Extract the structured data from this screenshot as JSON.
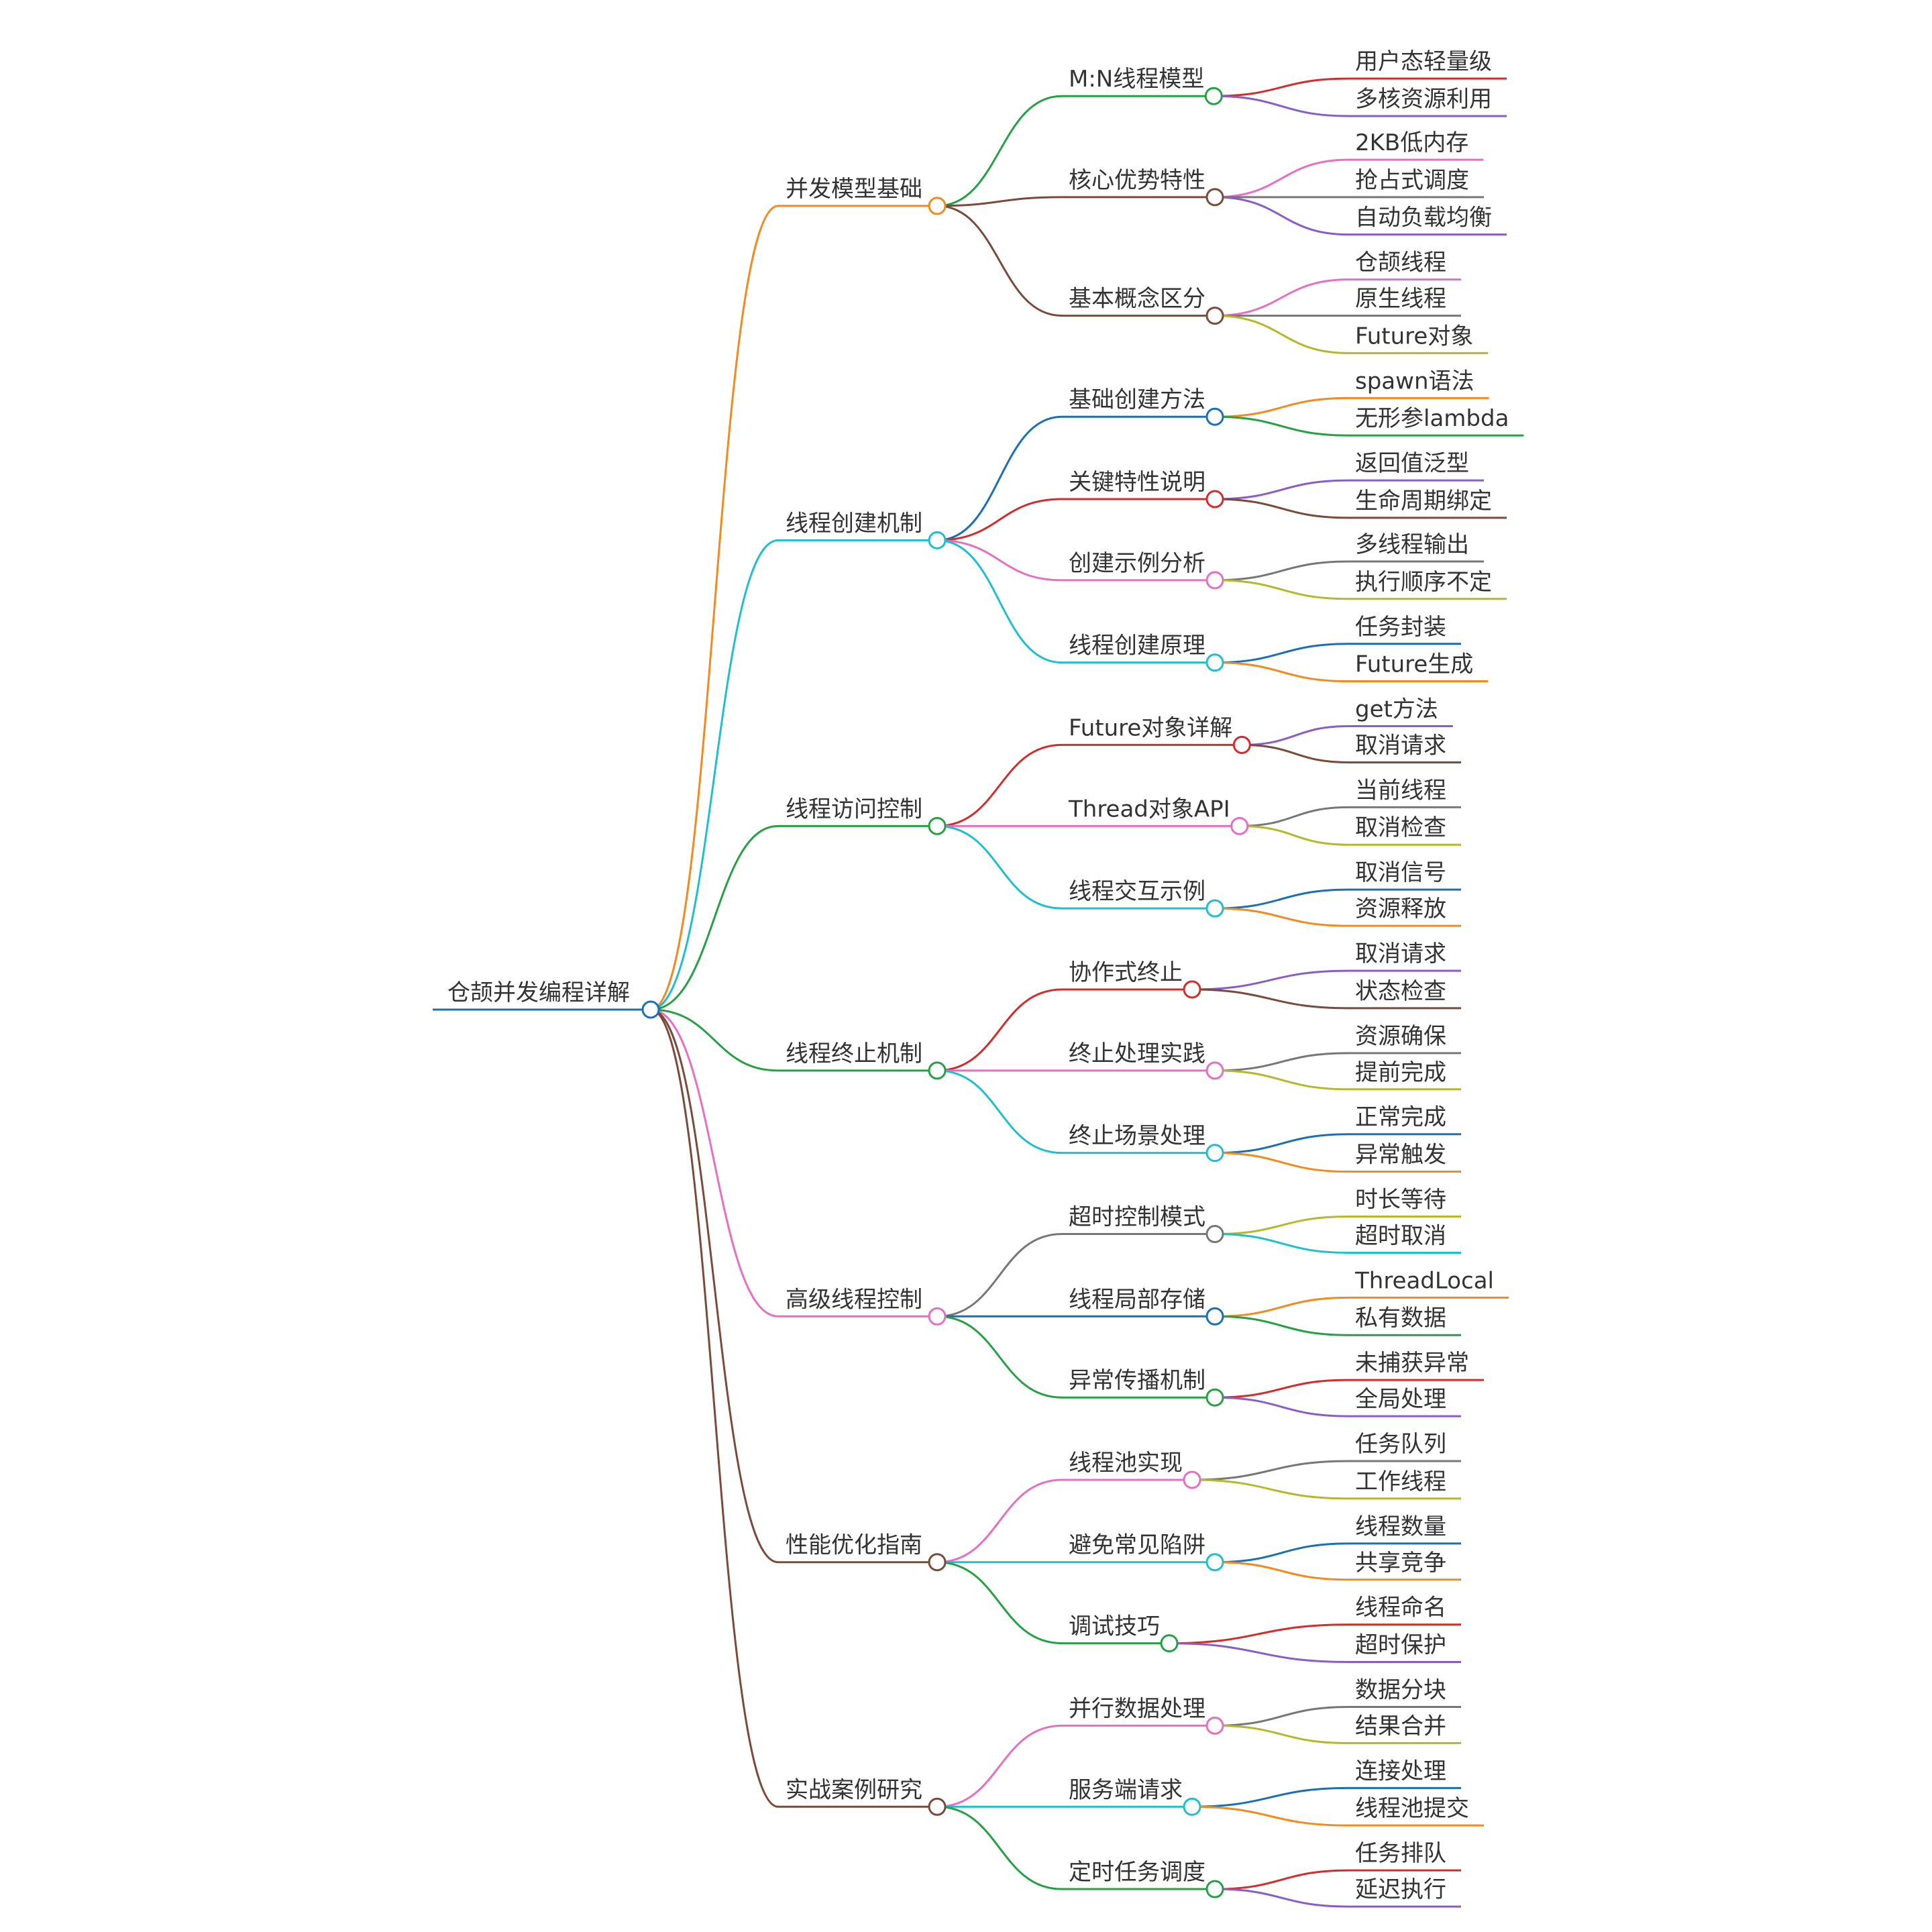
{
  "colors": {
    "orange": "#f28a1e",
    "cyan": "#1fbfcf",
    "green": "#26a045",
    "pink": "#e66fc4",
    "brown": "#7a4a3a",
    "blue": "#1a6fb5",
    "red": "#d22c2c",
    "purple": "#8a5cc7",
    "gray": "#777777",
    "olive": "#b4b82a",
    "text": "#333333"
  },
  "root": {
    "label": "仓颉并发编程详解",
    "color": "blue"
  },
  "branches": [
    {
      "label": "并发模型基础",
      "color": "orange",
      "children": [
        {
          "label": "M:N线程模型",
          "color": "green",
          "leaves": [
            {
              "label": "用户态轻量级",
              "color": "red"
            },
            {
              "label": "多核资源利用",
              "color": "purple"
            }
          ]
        },
        {
          "label": "核心优势特性",
          "color": "brown",
          "leaves": [
            {
              "label": "2KB低内存",
              "color": "pink"
            },
            {
              "label": "抢占式调度",
              "color": "gray"
            },
            {
              "label": "自动负载均衡",
              "color": "purple"
            }
          ]
        },
        {
          "label": "基本概念区分",
          "color": "brown",
          "leaves": [
            {
              "label": "仓颉线程",
              "color": "pink"
            },
            {
              "label": "原生线程",
              "color": "gray"
            },
            {
              "label": "Future对象",
              "color": "olive"
            }
          ]
        }
      ]
    },
    {
      "label": "线程创建机制",
      "color": "cyan",
      "children": [
        {
          "label": "基础创建方法",
          "color": "blue",
          "leaves": [
            {
              "label": "spawn语法",
              "color": "orange"
            },
            {
              "label": "无形参lambda",
              "color": "green"
            }
          ]
        },
        {
          "label": "关键特性说明",
          "color": "red",
          "leaves": [
            {
              "label": "返回值泛型",
              "color": "purple"
            },
            {
              "label": "生命周期绑定",
              "color": "brown"
            }
          ]
        },
        {
          "label": "创建示例分析",
          "color": "pink",
          "leaves": [
            {
              "label": "多线程输出",
              "color": "gray"
            },
            {
              "label": "执行顺序不定",
              "color": "olive"
            }
          ]
        },
        {
          "label": "线程创建原理",
          "color": "cyan",
          "leaves": [
            {
              "label": "任务封装",
              "color": "blue"
            },
            {
              "label": "Future生成",
              "color": "orange"
            }
          ]
        }
      ]
    },
    {
      "label": "线程访问控制",
      "color": "green",
      "children": [
        {
          "label": "Future对象详解",
          "color": "red",
          "leaves": [
            {
              "label": "get方法",
              "color": "purple"
            },
            {
              "label": "取消请求",
              "color": "brown"
            }
          ]
        },
        {
          "label": "Thread对象API",
          "color": "pink",
          "leaves": [
            {
              "label": "当前线程",
              "color": "gray"
            },
            {
              "label": "取消检查",
              "color": "olive"
            }
          ]
        },
        {
          "label": "线程交互示例",
          "color": "cyan",
          "leaves": [
            {
              "label": "取消信号",
              "color": "blue"
            },
            {
              "label": "资源释放",
              "color": "orange"
            }
          ]
        }
      ]
    },
    {
      "label": "线程终止机制",
      "color": "green",
      "children": [
        {
          "label": "协作式终止",
          "color": "red",
          "leaves": [
            {
              "label": "取消请求",
              "color": "purple"
            },
            {
              "label": "状态检查",
              "color": "brown"
            }
          ]
        },
        {
          "label": "终止处理实践",
          "color": "pink",
          "leaves": [
            {
              "label": "资源确保",
              "color": "gray"
            },
            {
              "label": "提前完成",
              "color": "olive"
            }
          ]
        },
        {
          "label": "终止场景处理",
          "color": "cyan",
          "leaves": [
            {
              "label": "正常完成",
              "color": "blue"
            },
            {
              "label": "异常触发",
              "color": "orange"
            }
          ]
        }
      ]
    },
    {
      "label": "高级线程控制",
      "color": "pink",
      "children": [
        {
          "label": "超时控制模式",
          "color": "gray",
          "leaves": [
            {
              "label": "时长等待",
              "color": "olive"
            },
            {
              "label": "超时取消",
              "color": "cyan"
            }
          ]
        },
        {
          "label": "线程局部存储",
          "color": "blue",
          "leaves": [
            {
              "label": "ThreadLocal",
              "color": "orange"
            },
            {
              "label": "私有数据",
              "color": "green"
            }
          ]
        },
        {
          "label": "异常传播机制",
          "color": "green",
          "leaves": [
            {
              "label": "未捕获异常",
              "color": "red"
            },
            {
              "label": "全局处理",
              "color": "purple"
            }
          ]
        }
      ]
    },
    {
      "label": "性能优化指南",
      "color": "brown",
      "children": [
        {
          "label": "线程池实现",
          "color": "pink",
          "leaves": [
            {
              "label": "任务队列",
              "color": "gray"
            },
            {
              "label": "工作线程",
              "color": "olive"
            }
          ]
        },
        {
          "label": "避免常见陷阱",
          "color": "cyan",
          "leaves": [
            {
              "label": "线程数量",
              "color": "blue"
            },
            {
              "label": "共享竞争",
              "color": "orange"
            }
          ]
        },
        {
          "label": "调试技巧",
          "color": "green",
          "leaves": [
            {
              "label": "线程命名",
              "color": "red"
            },
            {
              "label": "超时保护",
              "color": "purple"
            }
          ]
        }
      ]
    },
    {
      "label": "实战案例研究",
      "color": "brown",
      "children": [
        {
          "label": "并行数据处理",
          "color": "pink",
          "leaves": [
            {
              "label": "数据分块",
              "color": "gray"
            },
            {
              "label": "结果合并",
              "color": "olive"
            }
          ]
        },
        {
          "label": "服务端请求",
          "color": "cyan",
          "leaves": [
            {
              "label": "连接处理",
              "color": "blue"
            },
            {
              "label": "线程池提交",
              "color": "orange"
            }
          ]
        },
        {
          "label": "定时任务调度",
          "color": "green",
          "leaves": [
            {
              "label": "任务排队",
              "color": "red"
            },
            {
              "label": "延迟执行",
              "color": "purple"
            }
          ]
        }
      ]
    }
  ]
}
